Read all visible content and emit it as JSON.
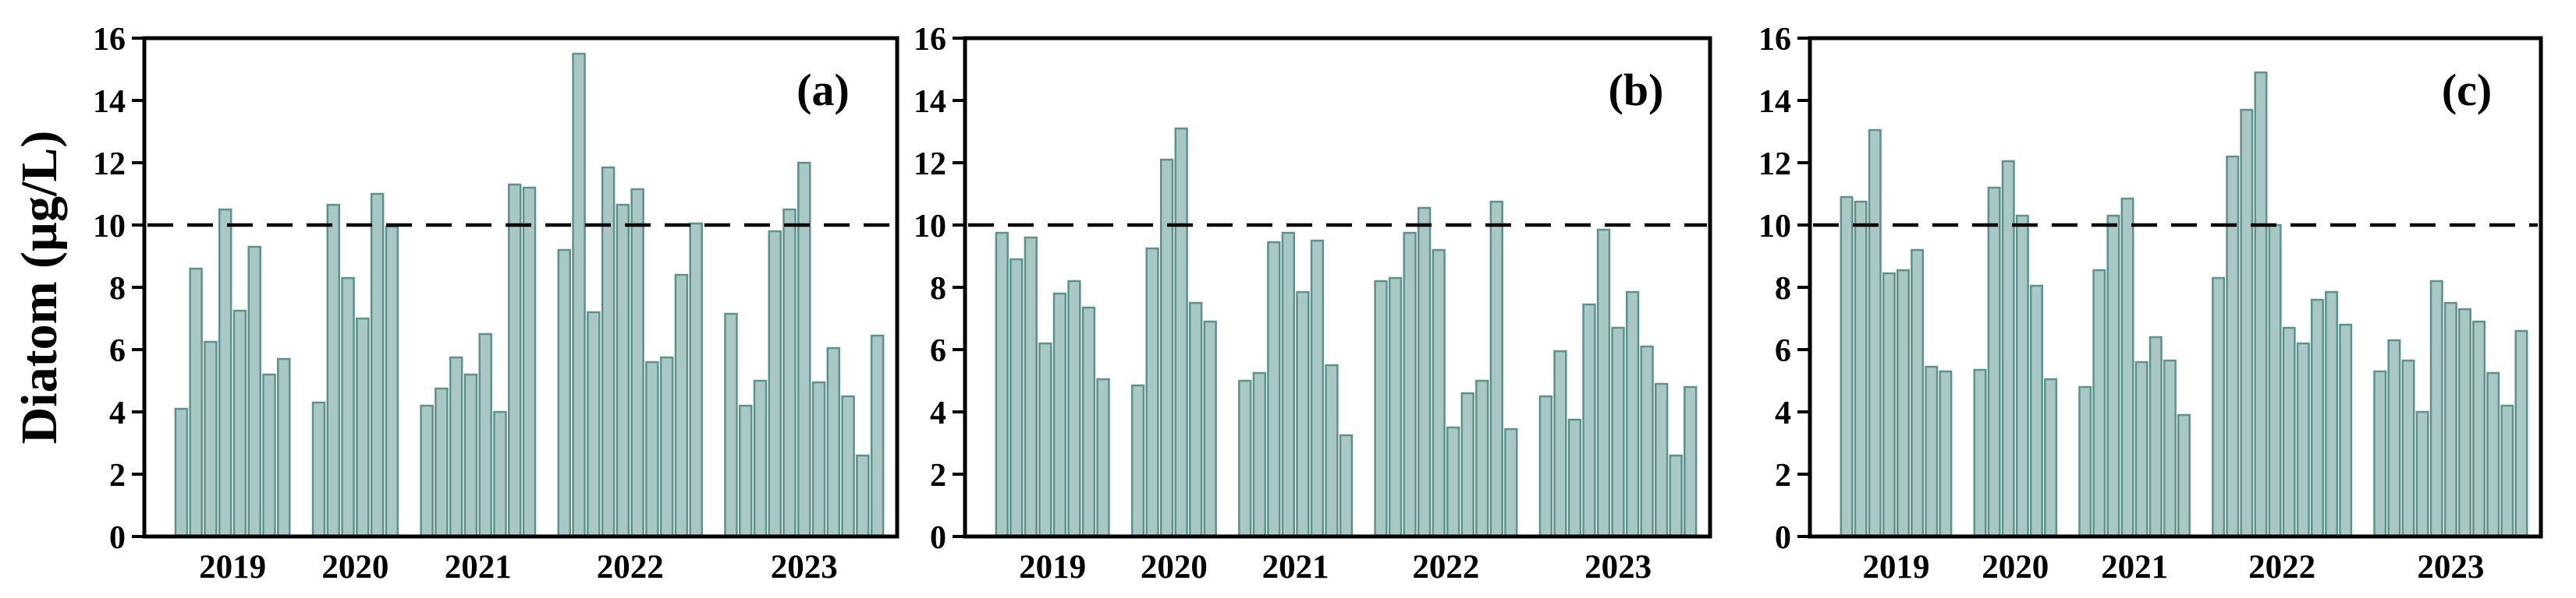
{
  "figure": {
    "ylabel": "Diatom (µg/L)",
    "reference_value": 10,
    "colors": {
      "bar_fill": "#a9c7c4",
      "bar_stroke": "#5b928d",
      "axis": "#000000",
      "reference_line": "#000000",
      "background": "#ffffff"
    }
  },
  "chart_data": [
    {
      "type": "bar",
      "panel_label": "(a)",
      "ylabel": "Diatom (µg/L)",
      "ylim": [
        0,
        16
      ],
      "yticks": [
        0,
        2,
        4,
        6,
        8,
        10,
        12,
        14,
        16
      ],
      "reference_line": 10,
      "grid": false,
      "legend": "none",
      "categories": [
        "2019",
        "2020",
        "2021",
        "2022",
        "2023"
      ],
      "groups": [
        {
          "year": "2019",
          "values": [
            4.1,
            8.6,
            6.25,
            10.5,
            7.25,
            9.3,
            5.2,
            5.7
          ]
        },
        {
          "year": "2020",
          "values": [
            4.3,
            10.65,
            8.3,
            7.0,
            11.0,
            9.95
          ]
        },
        {
          "year": "2021",
          "values": [
            4.2,
            4.75,
            5.75,
            5.2,
            6.5,
            4.0,
            11.3,
            11.2
          ]
        },
        {
          "year": "2022",
          "values": [
            9.2,
            15.5,
            7.2,
            11.85,
            10.65,
            11.15,
            5.6,
            5.75,
            8.4,
            10.05
          ]
        },
        {
          "year": "2023",
          "values": [
            7.15,
            4.2,
            5.0,
            9.8,
            10.5,
            12.0,
            4.95,
            6.05,
            4.5,
            2.6,
            6.45
          ]
        }
      ]
    },
    {
      "type": "bar",
      "panel_label": "(b)",
      "ylabel": "",
      "ylim": [
        0,
        16
      ],
      "yticks": [
        0,
        2,
        4,
        6,
        8,
        10,
        12,
        14,
        16
      ],
      "reference_line": 10,
      "grid": false,
      "legend": "none",
      "categories": [
        "2019",
        "2020",
        "2021",
        "2022",
        "2023"
      ],
      "groups": [
        {
          "year": "2019",
          "values": [
            9.75,
            8.9,
            9.6,
            6.2,
            7.8,
            8.2,
            7.35,
            5.05
          ]
        },
        {
          "year": "2020",
          "values": [
            4.85,
            9.25,
            12.1,
            13.1,
            7.5,
            6.9
          ]
        },
        {
          "year": "2021",
          "values": [
            5.0,
            5.25,
            9.45,
            9.75,
            7.85,
            9.5,
            5.5,
            3.25
          ]
        },
        {
          "year": "2022",
          "values": [
            8.2,
            8.3,
            9.75,
            10.55,
            9.2,
            3.5,
            4.6,
            5.0,
            10.75,
            3.45
          ]
        },
        {
          "year": "2023",
          "values": [
            4.5,
            5.95,
            3.75,
            7.45,
            9.85,
            6.7,
            7.85,
            6.1,
            4.9,
            2.6,
            4.8
          ]
        }
      ]
    },
    {
      "type": "bar",
      "panel_label": "(c)",
      "ylabel": "",
      "ylim": [
        0,
        16
      ],
      "yticks": [
        0,
        2,
        4,
        6,
        8,
        10,
        12,
        14,
        16
      ],
      "reference_line": 10,
      "grid": false,
      "legend": "none",
      "categories": [
        "2019",
        "2020",
        "2021",
        "2022",
        "2023"
      ],
      "groups": [
        {
          "year": "2019",
          "values": [
            10.9,
            10.75,
            13.05,
            8.45,
            8.55,
            9.2,
            5.45,
            5.3
          ]
        },
        {
          "year": "2020",
          "values": [
            5.35,
            11.2,
            12.05,
            10.3,
            8.05,
            5.05
          ]
        },
        {
          "year": "2021",
          "values": [
            4.8,
            8.55,
            10.3,
            10.85,
            5.6,
            6.4,
            5.65,
            3.9
          ]
        },
        {
          "year": "2022",
          "values": [
            8.3,
            12.2,
            13.7,
            14.9,
            10.0,
            6.7,
            6.2,
            7.6,
            7.85,
            6.8
          ]
        },
        {
          "year": "2023",
          "values": [
            5.3,
            6.3,
            5.65,
            4.0,
            8.2,
            7.5,
            7.3,
            6.9,
            5.25,
            4.2,
            6.6
          ]
        }
      ]
    }
  ]
}
